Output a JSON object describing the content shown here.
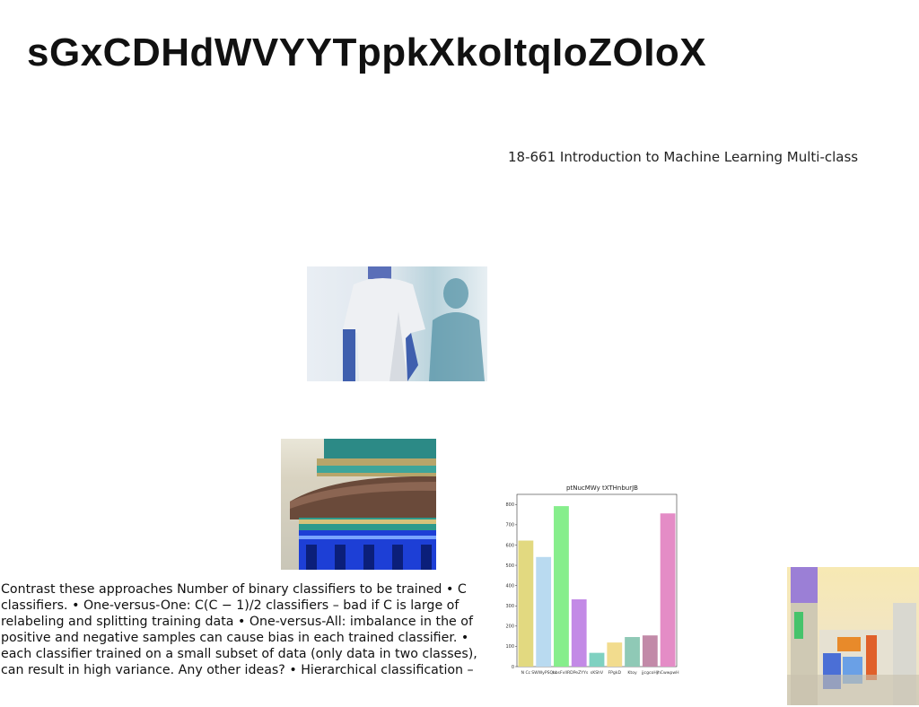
{
  "slide": {
    "title": "sGxCDHdWVYYTppkXkoItqIoZOIoX",
    "subtitle": "18-661 Introduction to Machine Learning Multi-class",
    "body": "Contrast these approaches Number of binary classifiers to be trained • C classifiers. • One-versus-One: C(C − 1)/2 classifiers – bad if C is large of relabeling and splitting training data • One-versus-All: imbalance in the of positive and negative samples can cause bias in each trained classifier. • each classifier trained on a small subset of data (only data in two classes), can result in high variance. Any other ideas? • Hierarchical classification –"
  },
  "images": [
    {
      "name": "person-photo",
      "description": "man in t-shirt with shadow"
    },
    {
      "name": "temple-photo",
      "description": "temple roof with blue ornamental band"
    },
    {
      "name": "building-photo",
      "description": "city building with signs"
    }
  ],
  "chart_data": {
    "type": "bar",
    "title": "ptNucMWy tXTHnburJB",
    "categories": [
      "N Cc",
      "SWWyPSQu",
      "hbsFvIlR",
      "DPeZYYs",
      "sKShV",
      "FPgkD",
      "Ktoy",
      "jjcgcoHr",
      "jhCwwpwH"
    ],
    "values": [
      622,
      541,
      792,
      332,
      68,
      119,
      146,
      154,
      756
    ],
    "colors": [
      "#e2d980",
      "#b9daf0",
      "#86ee8c",
      "#c38ae6",
      "#7fd1c1",
      "#f2dc8e",
      "#8fc9b6",
      "#c28aa8",
      "#e48cc6"
    ],
    "ylim": [
      0,
      850
    ],
    "yticks": [
      0,
      100,
      200,
      300,
      400,
      500,
      600,
      700,
      800
    ],
    "grid": false
  }
}
